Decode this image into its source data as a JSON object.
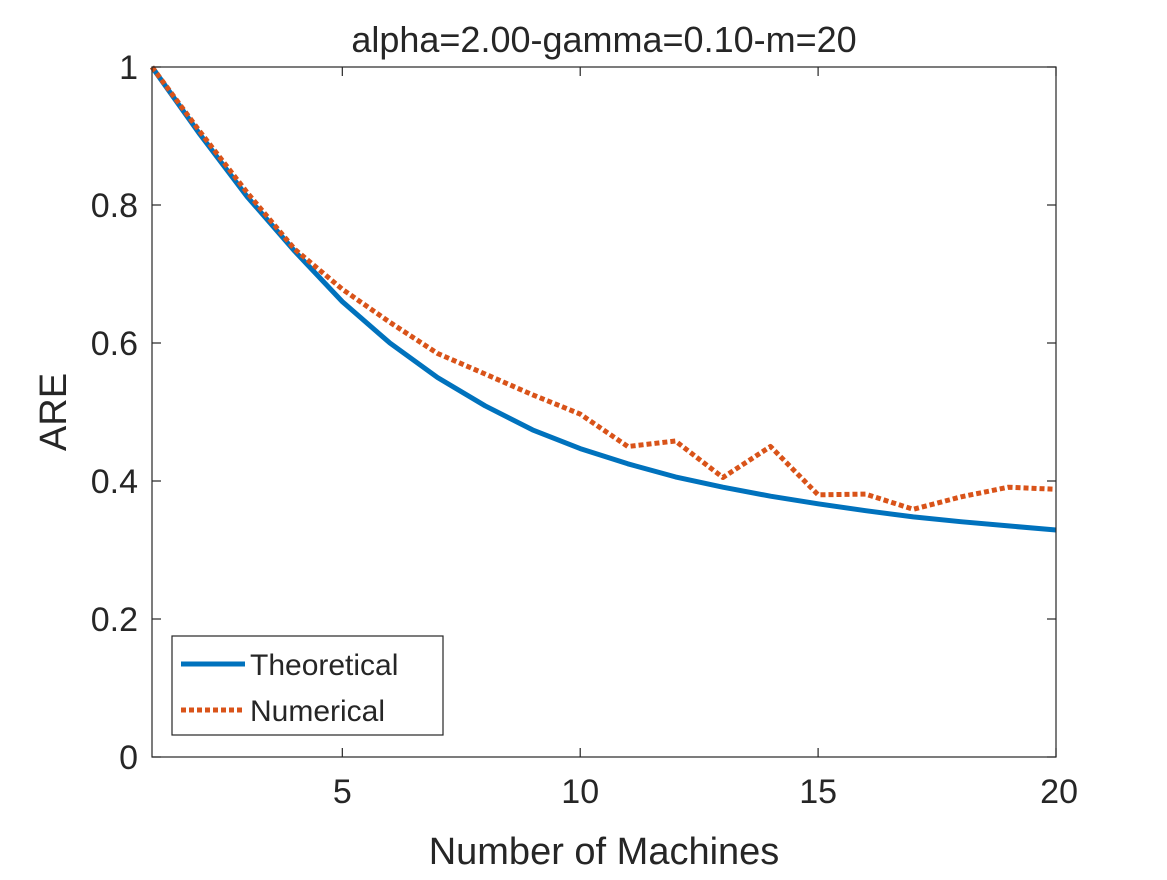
{
  "chart_data": {
    "type": "line",
    "title": "alpha=2.00-gamma=0.10-m=20",
    "xlabel": "Number of Machines",
    "ylabel": "ARE",
    "xlim": [
      1,
      20
    ],
    "ylim": [
      0,
      1
    ],
    "xticks": [
      5,
      10,
      15,
      20
    ],
    "yticks": [
      0,
      0.2,
      0.4,
      0.6,
      0.8,
      1
    ],
    "ytick_labels": [
      "0",
      "0.2",
      "0.4",
      "0.6",
      "0.8",
      "1"
    ],
    "xtick_labels": [
      "5",
      "10",
      "15",
      "20"
    ],
    "grid": false,
    "legend_position": "bottom-left",
    "x": [
      1,
      2,
      3,
      4,
      5,
      6,
      7,
      8,
      9,
      10,
      11,
      12,
      13,
      14,
      15,
      16,
      17,
      18,
      19,
      20
    ],
    "series": [
      {
        "name": "Theoretical",
        "color": "#0072BD",
        "style": "solid",
        "values": [
          1.0,
          0.903,
          0.812,
          0.733,
          0.66,
          0.6,
          0.55,
          0.509,
          0.474,
          0.447,
          0.425,
          0.406,
          0.391,
          0.378,
          0.367,
          0.357,
          0.348,
          0.341,
          0.335,
          0.329
        ]
      },
      {
        "name": "Numerical",
        "color": "#D95319",
        "style": "dotted",
        "values": [
          1.0,
          0.907,
          0.818,
          0.736,
          0.678,
          0.63,
          0.585,
          0.555,
          0.525,
          0.497,
          0.45,
          0.458,
          0.405,
          0.45,
          0.38,
          0.381,
          0.359,
          0.377,
          0.391,
          0.388
        ]
      }
    ]
  }
}
